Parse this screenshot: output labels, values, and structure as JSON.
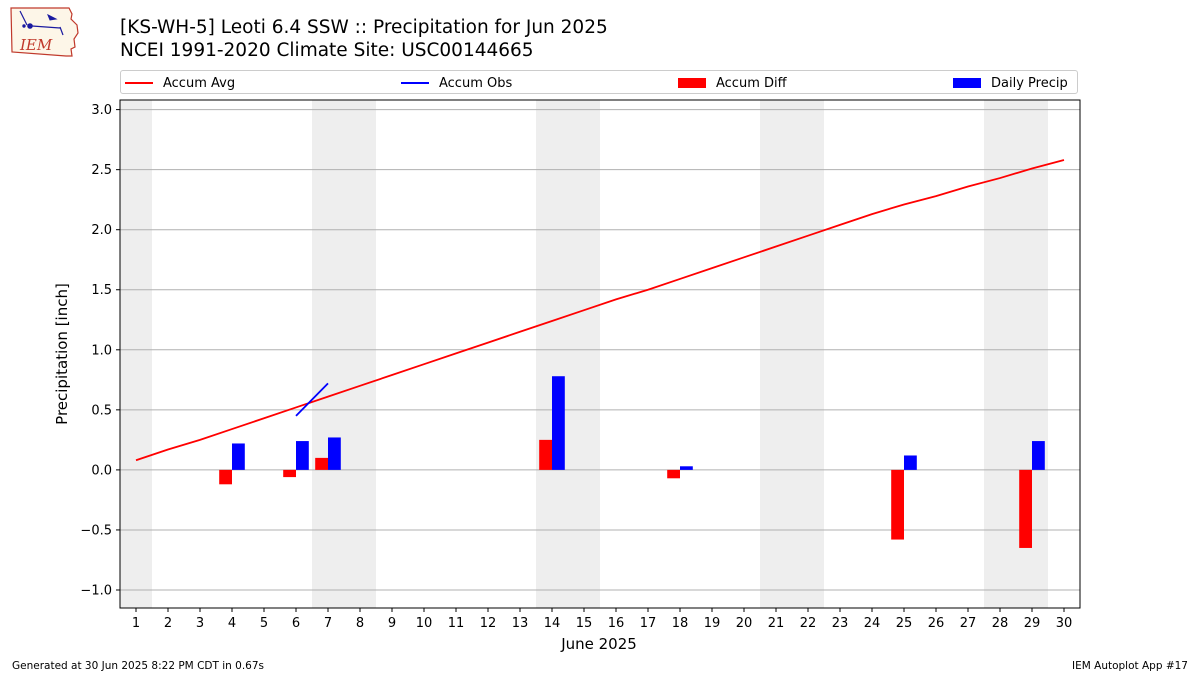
{
  "header": {
    "logo_text": "IEM",
    "title_line1": "[KS-WH-5] Leoti 6.4 SSW :: Precipitation for Jun 2025",
    "title_line2": "NCEI 1991-2020 Climate Site: USC00144665"
  },
  "legend": {
    "accum_avg": "Accum Avg",
    "accum_obs": "Accum Obs",
    "accum_diff": "Accum Diff",
    "daily_precip": "Daily Precip",
    "placement": "top, above plot"
  },
  "footer": {
    "generated": "Generated at 30 Jun 2025 8:22 PM CDT in 0.67s",
    "app": "IEM Autoplot App #17"
  },
  "colors": {
    "accum_avg": "#ff0000",
    "accum_obs": "#0000ff",
    "accum_diff": "#ff0000",
    "daily_precip": "#0000ff",
    "weekend_shade": "#eeeeee",
    "grid": "#b0b0b0"
  },
  "chart_data": {
    "type": "bar",
    "xlabel": "June 2025",
    "ylabel": "Precipitation [inch]",
    "ylim": [
      -1.15,
      3.08
    ],
    "xlim": [
      0.5,
      30.5
    ],
    "yticks": [
      -1.0,
      -0.5,
      0.0,
      0.5,
      1.0,
      1.5,
      2.0,
      2.5,
      3.0
    ],
    "ytick_labels": [
      "−1.0",
      "−0.5",
      "0.0",
      "0.5",
      "1.0",
      "1.5",
      "2.0",
      "2.5",
      "3.0"
    ],
    "days": [
      1,
      2,
      3,
      4,
      5,
      6,
      7,
      8,
      9,
      10,
      11,
      12,
      13,
      14,
      15,
      16,
      17,
      18,
      19,
      20,
      21,
      22,
      23,
      24,
      25,
      26,
      27,
      28,
      29,
      30
    ],
    "grid": "horizontal",
    "weekend_days": [
      1,
      7,
      8,
      14,
      15,
      21,
      22,
      28,
      29
    ],
    "series": [
      {
        "name": "Accum Avg",
        "kind": "line",
        "x": [
          1,
          2,
          3,
          4,
          5,
          6,
          7,
          8,
          9,
          10,
          11,
          12,
          13,
          14,
          15,
          16,
          17,
          18,
          19,
          20,
          21,
          22,
          23,
          24,
          25,
          26,
          27,
          28,
          29,
          30
        ],
        "values": [
          0.08,
          0.17,
          0.25,
          0.34,
          0.43,
          0.52,
          0.61,
          0.7,
          0.79,
          0.88,
          0.97,
          1.06,
          1.15,
          1.24,
          1.33,
          1.42,
          1.5,
          1.59,
          1.68,
          1.77,
          1.86,
          1.95,
          2.04,
          2.13,
          2.21,
          2.28,
          2.36,
          2.43,
          2.51,
          2.58
        ]
      },
      {
        "name": "Accum Obs",
        "kind": "line",
        "x": [
          6,
          7
        ],
        "values": [
          0.45,
          0.72
        ]
      },
      {
        "name": "Accum Diff",
        "kind": "bar",
        "x": [
          4,
          6,
          7,
          14,
          18,
          25,
          29
        ],
        "values": [
          -0.12,
          -0.06,
          0.1,
          0.25,
          -0.07,
          -0.58,
          -0.65
        ]
      },
      {
        "name": "Daily Precip",
        "kind": "bar",
        "x": [
          4,
          6,
          7,
          14,
          18,
          25,
          29
        ],
        "values": [
          0.22,
          0.24,
          0.27,
          0.78,
          0.03,
          0.12,
          0.24
        ]
      }
    ]
  }
}
